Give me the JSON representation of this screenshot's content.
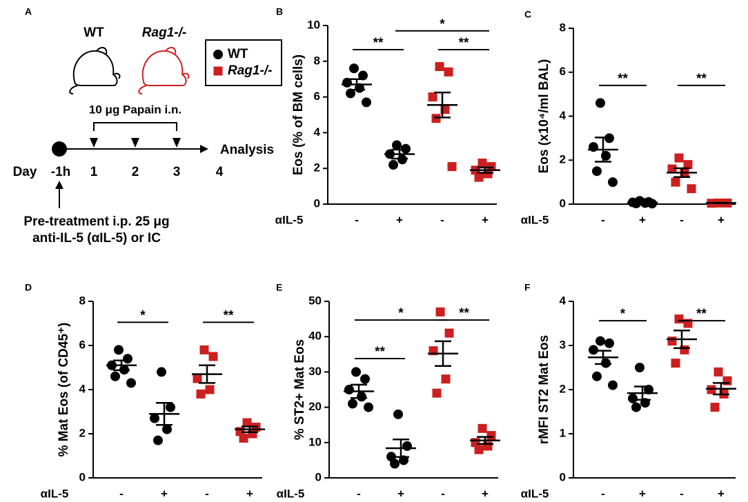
{
  "schematic": {
    "panel": "A",
    "mouse_labels": [
      "WT",
      "Rag1-/-"
    ],
    "treatment": "10 μg Papain i.n.",
    "day_label": "Day",
    "days": [
      "-1h",
      "1",
      "2",
      "3",
      "4"
    ],
    "end_label": "Analysis",
    "pretreatment": [
      "Pre-treatment i.p. 25 μg",
      "anti-IL-5 (αIL-5) or IC"
    ]
  },
  "chart_data": [
    {
      "type": "dot",
      "panel": "B",
      "ylabel": "Eos (% of BM cells)",
      "row_label": "αIL-5",
      "categories": [
        "-",
        "+",
        "-",
        "+"
      ],
      "ylim": [
        0,
        10
      ],
      "yticks": [
        0,
        2,
        4,
        6,
        8,
        10
      ],
      "series": [
        {
          "name": "WT",
          "color": "#000000",
          "marker": "circle",
          "points": [
            [
              7.6,
              7.2,
              6.8,
              6.5,
              6.2,
              5.7
            ],
            [
              3.3,
              3.1,
              2.8,
              2.5,
              2.2
            ],
            null,
            null
          ],
          "means": [
            6.7,
            2.8,
            null,
            null
          ],
          "sems": [
            0.3,
            0.25,
            null,
            null
          ]
        },
        {
          "name": "Rag1-/-",
          "color": "#cc1f1f",
          "marker": "square",
          "points": [
            null,
            null,
            [
              7.7,
              7.4,
              6.0,
              5.3,
              4.8,
              2.1
            ],
            [
              2.3,
              2.1,
              1.9,
              1.7,
              1.5
            ]
          ],
          "means": [
            null,
            null,
            5.55,
            1.9
          ],
          "sems": [
            null,
            null,
            0.7,
            0.15
          ]
        }
      ],
      "brackets": [
        {
          "from": 0,
          "to": 1,
          "label": "**",
          "y": 8.65
        },
        {
          "from": 2,
          "to": 3,
          "label": "**",
          "y": 8.65
        },
        {
          "from": 1,
          "to": 3,
          "label": "*",
          "y": 9.7
        }
      ]
    },
    {
      "type": "dot",
      "panel": "C",
      "ylabel": "Eos (x10⁴/ml BAL)",
      "row_label": "αIL-5",
      "categories": [
        "-",
        "+",
        "-",
        "+"
      ],
      "ylim": [
        0,
        8
      ],
      "yticks": [
        0,
        2,
        4,
        6,
        8
      ],
      "series": [
        {
          "name": "WT",
          "color": "#000000",
          "marker": "circle",
          "points": [
            [
              4.6,
              3.0,
              2.6,
              2.2,
              1.5,
              1.0
            ],
            [
              0.15,
              0.1,
              0.08,
              0.05,
              0.03,
              0.02
            ],
            null,
            null
          ],
          "means": [
            2.48,
            0.07,
            null,
            null
          ],
          "sems": [
            0.55,
            0.02,
            null,
            null
          ]
        },
        {
          "name": "Rag1-/-",
          "color": "#cc1f1f",
          "marker": "square",
          "points": [
            null,
            null,
            [
              2.1,
              1.8,
              1.6,
              1.4,
              1.0,
              0.7
            ],
            [
              0.05,
              0.05,
              0.04
            ]
          ],
          "means": [
            null,
            null,
            1.43,
            0.05
          ],
          "sems": [
            null,
            null,
            0.2,
            0.01
          ]
        }
      ],
      "brackets": [
        {
          "from": 0,
          "to": 1,
          "label": "**",
          "y": 5.4
        },
        {
          "from": 2,
          "to": 3,
          "label": "**",
          "y": 5.4
        }
      ]
    },
    {
      "type": "dot",
      "panel": "D",
      "ylabel": "% Mat Eos (of CD45⁺)",
      "row_label": "αIL-5",
      "categories": [
        "-",
        "+",
        "-",
        "+"
      ],
      "ylim": [
        0,
        8
      ],
      "yticks": [
        0,
        2,
        4,
        6,
        8
      ],
      "series": [
        {
          "name": "WT",
          "color": "#000000",
          "marker": "circle",
          "points": [
            [
              5.8,
              5.4,
              5.1,
              4.9,
              4.6,
              4.3
            ],
            [
              4.8,
              3.2,
              2.7,
              2.2,
              1.7
            ],
            null,
            null
          ],
          "means": [
            5.1,
            2.9,
            null,
            null
          ],
          "sems": [
            0.22,
            0.5,
            null,
            null
          ]
        },
        {
          "name": "Rag1-/-",
          "color": "#cc1f1f",
          "marker": "square",
          "points": [
            null,
            null,
            [
              5.8,
              5.5,
              4.5,
              4.0,
              3.8
            ],
            [
              2.5,
              2.3,
              2.1,
              2.0,
              1.8
            ]
          ],
          "means": [
            null,
            null,
            4.7,
            2.2
          ],
          "sems": [
            null,
            null,
            0.4,
            0.13
          ]
        }
      ],
      "brackets": [
        {
          "from": 0,
          "to": 1,
          "label": "*",
          "y": 7.05
        },
        {
          "from": 2,
          "to": 3,
          "label": "**",
          "y": 7.05
        }
      ]
    },
    {
      "type": "dot",
      "panel": "E",
      "ylabel": "% ST2+ Mat Eos",
      "row_label": "αIL-5",
      "categories": [
        "-",
        "+",
        "-",
        "+"
      ],
      "ylim": [
        0,
        50
      ],
      "yticks": [
        0,
        10,
        20,
        30,
        40,
        50
      ],
      "series": [
        {
          "name": "WT",
          "color": "#000000",
          "marker": "circle",
          "points": [
            [
              30,
              28,
              25,
              23,
              21,
              20
            ],
            [
              18,
              9,
              6,
              5,
              4
            ],
            null,
            null
          ],
          "means": [
            24.5,
            8.4,
            null,
            null
          ],
          "sems": [
            1.9,
            2.5,
            null,
            null
          ]
        },
        {
          "name": "Rag1-/-",
          "color": "#cc1f1f",
          "marker": "square",
          "points": [
            null,
            null,
            [
              47,
              41,
              36,
              28,
              24
            ],
            [
              14,
              12,
              10,
              9,
              8
            ]
          ],
          "means": [
            null,
            null,
            35.2,
            10.6
          ],
          "sems": [
            null,
            null,
            3.5,
            1
          ]
        }
      ],
      "brackets": [
        {
          "from": 0,
          "to": 1,
          "label": "**",
          "y": 33.8
        },
        {
          "from": 0,
          "to": 2,
          "label": "*",
          "y": 44.7
        },
        {
          "from": 2,
          "to": 3,
          "label": "**",
          "y": 44.7
        }
      ]
    },
    {
      "type": "dot",
      "panel": "F",
      "ylabel": "rMFI ST2 Mat Eos",
      "row_label": "αIL-5",
      "categories": [
        "-",
        "+",
        "-",
        "+"
      ],
      "ylim": [
        0,
        4
      ],
      "yticks": [
        0,
        1,
        2,
        3,
        4
      ],
      "series": [
        {
          "name": "WT",
          "color": "#000000",
          "marker": "circle",
          "points": [
            [
              3.1,
              3.05,
              2.9,
              2.6,
              2.3,
              2.1
            ],
            [
              2.5,
              2.0,
              1.8,
              1.7,
              1.6
            ],
            null,
            null
          ],
          "means": [
            2.73,
            1.92,
            null,
            null
          ],
          "sems": [
            0.15,
            0.15,
            null,
            null
          ]
        },
        {
          "name": "Rag1-/-",
          "color": "#cc1f1f",
          "marker": "square",
          "points": [
            null,
            null,
            [
              3.6,
              3.5,
              3.1,
              2.9,
              2.6
            ],
            [
              2.4,
              2.2,
              2.0,
              1.9,
              1.6
            ]
          ],
          "means": [
            null,
            null,
            3.14,
            2.02
          ],
          "sems": [
            null,
            null,
            0.2,
            0.13
          ]
        }
      ],
      "brackets": [
        {
          "from": 0,
          "to": 1,
          "label": "*",
          "y": 3.56
        },
        {
          "from": 2,
          "to": 3,
          "label": "**",
          "y": 3.56
        }
      ]
    }
  ]
}
